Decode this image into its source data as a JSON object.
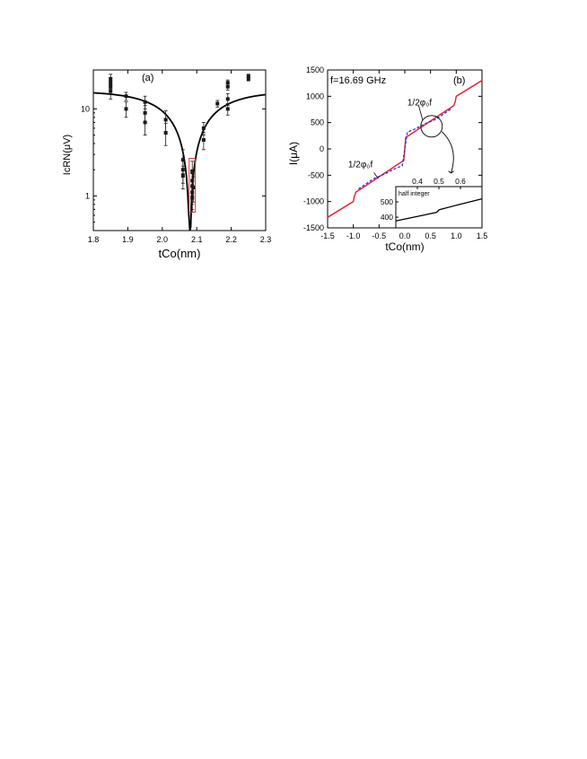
{
  "chart_data": [
    {
      "type": "scatter",
      "panel_label": "(a)",
      "xlabel": "tCo(nm)",
      "ylabel": "IcRN(μV)",
      "xlim": [
        1.8,
        2.3
      ],
      "ylim": [
        0.4,
        28
      ],
      "yscale": "log",
      "x_ticks": [
        "1.8",
        "1.9",
        "2.0",
        "2.1",
        "2.2",
        "2.3"
      ],
      "y_ticks": [
        {
          "value": 1,
          "label": "1"
        },
        {
          "value": 10,
          "label": "10"
        }
      ],
      "fit_curve": {
        "amplitude": 16,
        "x0": 2.08,
        "width": 0.09
      },
      "points": [
        {
          "x": 1.85,
          "y": 22,
          "err": 3
        },
        {
          "x": 1.85,
          "y": 20,
          "err": 3
        },
        {
          "x": 1.85,
          "y": 18,
          "err": 3
        },
        {
          "x": 1.85,
          "y": 16,
          "err": 3
        },
        {
          "x": 1.895,
          "y": 14,
          "err": 1.5
        },
        {
          "x": 1.895,
          "y": 10,
          "err": 2
        },
        {
          "x": 1.95,
          "y": 12,
          "err": 2
        },
        {
          "x": 1.95,
          "y": 9,
          "err": 2
        },
        {
          "x": 1.95,
          "y": 7,
          "err": 2
        },
        {
          "x": 2.01,
          "y": 7.5,
          "err": 2
        },
        {
          "x": 2.01,
          "y": 5.3,
          "err": 1.5
        },
        {
          "x": 2.06,
          "y": 2.6,
          "err": 0.8
        },
        {
          "x": 2.06,
          "y": 2.0,
          "err": 0.6
        },
        {
          "x": 2.06,
          "y": 1.7,
          "err": 0.5
        },
        {
          "x": 2.087,
          "y": 1.9,
          "err": 0.6
        },
        {
          "x": 2.087,
          "y": 1.5,
          "err": 0.5
        },
        {
          "x": 2.087,
          "y": 1.3,
          "err": 0.5
        },
        {
          "x": 2.087,
          "y": 1.1,
          "err": 0.4
        },
        {
          "x": 2.087,
          "y": 0.95,
          "err": 0.3
        },
        {
          "x": 2.09,
          "y": 1.25,
          "err": 0.4
        },
        {
          "x": 2.12,
          "y": 6,
          "err": 1
        },
        {
          "x": 2.12,
          "y": 4.4,
          "err": 1
        },
        {
          "x": 2.16,
          "y": 11.5,
          "err": 1
        },
        {
          "x": 2.19,
          "y": 20,
          "err": 1.5
        },
        {
          "x": 2.19,
          "y": 18,
          "err": 1.5
        },
        {
          "x": 2.19,
          "y": 13,
          "err": 2
        },
        {
          "x": 2.19,
          "y": 10,
          "err": 1.5
        },
        {
          "x": 2.25,
          "y": 24,
          "err": 1
        },
        {
          "x": 2.25,
          "y": 22,
          "err": 1
        }
      ],
      "highlight_box": {
        "x": [
          2.078,
          2.096
        ],
        "y": [
          0.65,
          2.7
        ],
        "color": "#d9342b"
      },
      "colors": {
        "data": "#1a1a1a",
        "fit": "#000000"
      }
    },
    {
      "type": "line",
      "panel_label": "(b)",
      "annotation_freq": "f=16.69 GHz",
      "annotation_half_upper": "1/2φ₀f",
      "annotation_half_lower": "1/2φ₀f",
      "xlabel": "tCo(nm)",
      "ylabel": "I(μA)",
      "xlim": [
        -1.5,
        1.5
      ],
      "ylim": [
        -1500,
        1500
      ],
      "x_ticks": [
        "-1.5",
        "-1.0",
        "-0.5",
        "0.0",
        "0.5",
        "1.0",
        "1.5"
      ],
      "y_ticks": [
        "-1500",
        "-1000",
        "-500",
        "0",
        "500",
        "1000",
        "1500"
      ],
      "series": [
        {
          "style": "solid",
          "color": "#e0283c",
          "x": [
            -1.5,
            -1.3,
            -1.1,
            -1.0,
            -0.98,
            -0.95,
            -0.9,
            -0.7,
            -0.5,
            -0.3,
            -0.1,
            -0.02,
            0.0,
            0.02,
            0.1,
            0.3,
            0.5,
            0.7,
            0.9,
            0.95,
            0.98,
            1.0,
            1.1,
            1.3,
            1.5
          ],
          "y": [
            -1300,
            -1180,
            -1060,
            -1000,
            -900,
            -820,
            -790,
            -660,
            -530,
            -400,
            -270,
            -220,
            0,
            220,
            270,
            400,
            530,
            660,
            790,
            820,
            900,
            1000,
            1060,
            1180,
            1300
          ]
        },
        {
          "style": "dashed",
          "color": "#2a35d6",
          "x": [
            -0.9,
            -0.6,
            -0.4,
            -0.2,
            -0.05,
            0.0,
            0.05,
            0.2,
            0.4,
            0.6,
            0.9
          ],
          "y": [
            -760,
            -560,
            -480,
            -380,
            -320,
            0,
            320,
            380,
            480,
            560,
            760
          ]
        }
      ],
      "inset": {
        "label": "half integer",
        "xlim": [
          0.3,
          0.7
        ],
        "ylim": [
          330,
          600
        ],
        "x_ticks": [
          "0.4",
          "0.5",
          "0.6"
        ],
        "y_ticks": [
          "400",
          "500"
        ],
        "x": [
          0.3,
          0.4,
          0.49,
          0.495,
          0.5,
          0.51,
          0.6,
          0.7
        ],
        "y": [
          375,
          405,
          432,
          440,
          448,
          452,
          485,
          520
        ]
      },
      "colors": {
        "axes": "#000000"
      }
    }
  ]
}
